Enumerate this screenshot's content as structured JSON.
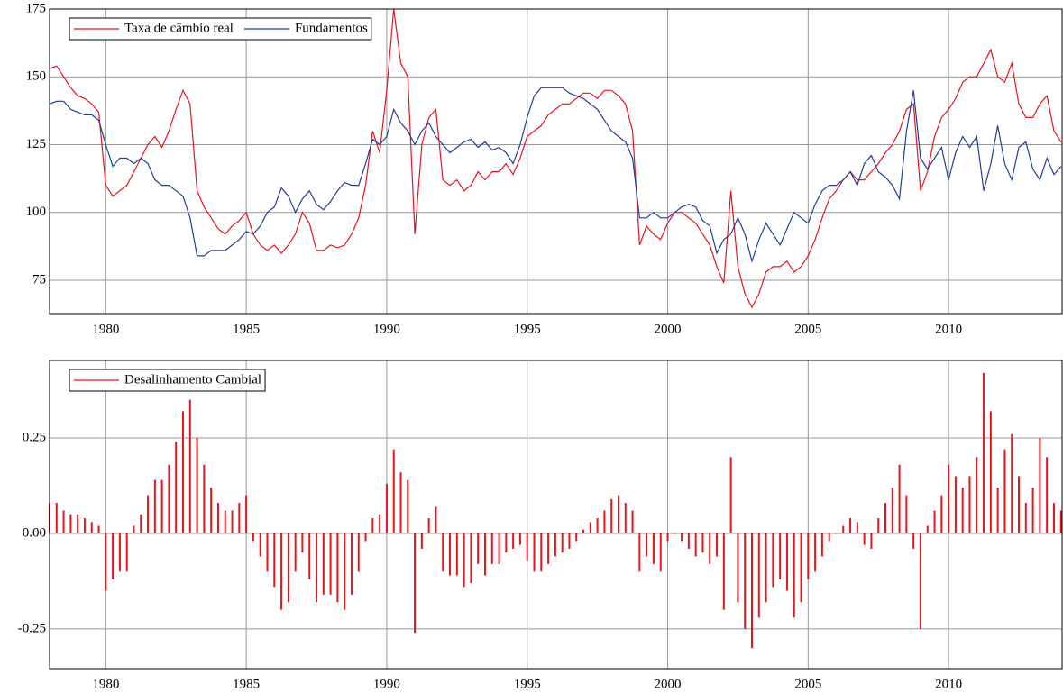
{
  "chart_data": [
    {
      "type": "line",
      "x": [
        1978,
        1978.25,
        1978.5,
        1978.75,
        1979,
        1979.25,
        1979.5,
        1979.75,
        1980,
        1980.25,
        1980.5,
        1980.75,
        1981,
        1981.25,
        1981.5,
        1981.75,
        1982,
        1982.25,
        1982.5,
        1982.75,
        1983,
        1983.25,
        1983.5,
        1983.75,
        1984,
        1984.25,
        1984.5,
        1984.75,
        1985,
        1985.25,
        1985.5,
        1985.75,
        1986,
        1986.25,
        1986.5,
        1986.75,
        1987,
        1987.25,
        1987.5,
        1987.75,
        1988,
        1988.25,
        1988.5,
        1988.75,
        1989,
        1989.25,
        1989.5,
        1989.75,
        1990,
        1990.25,
        1990.5,
        1990.75,
        1991,
        1991.25,
        1991.5,
        1991.75,
        1992,
        1992.25,
        1992.5,
        1992.75,
        1993,
        1993.25,
        1993.5,
        1993.75,
        1994,
        1994.25,
        1994.5,
        1994.75,
        1995,
        1995.25,
        1995.5,
        1995.75,
        1996,
        1996.25,
        1996.5,
        1996.75,
        1997,
        1997.25,
        1997.5,
        1997.75,
        1998,
        1998.25,
        1998.5,
        1998.75,
        1999,
        1999.25,
        1999.5,
        1999.75,
        2000,
        2000.25,
        2000.5,
        2000.75,
        2001,
        2001.25,
        2001.5,
        2001.75,
        2002,
        2002.25,
        2002.5,
        2002.75,
        2003,
        2003.25,
        2003.5,
        2003.75,
        2004,
        2004.25,
        2004.5,
        2004.75,
        2005,
        2005.25,
        2005.5,
        2005.75,
        2006,
        2006.25,
        2006.5,
        2006.75,
        2007,
        2007.25,
        2007.5,
        2007.75,
        2008,
        2008.25,
        2008.5,
        2008.75,
        2009,
        2009.25,
        2009.5,
        2009.75,
        2010,
        2010.25,
        2010.5,
        2010.75,
        2011,
        2011.25,
        2011.5,
        2011.75,
        2012,
        2012.25,
        2012.5,
        2012.75,
        2013,
        2013.25,
        2013.5,
        2013.75,
        2014
      ],
      "series": [
        {
          "name": "Taxa de câmbio real",
          "color": "#e8141c",
          "values": [
            153,
            154,
            150,
            146,
            143,
            142,
            140,
            137,
            110,
            106,
            108,
            110,
            115,
            120,
            125,
            128,
            124,
            130,
            138,
            145,
            140,
            108,
            102,
            98,
            94,
            92,
            95,
            97,
            100,
            92,
            88,
            86,
            88,
            85,
            88,
            92,
            100,
            96,
            86,
            86,
            88,
            87,
            88,
            92,
            98,
            110,
            130,
            122,
            145,
            175,
            155,
            150,
            92,
            125,
            135,
            138,
            112,
            110,
            112,
            108,
            110,
            115,
            112,
            115,
            115,
            118,
            114,
            120,
            128,
            130,
            132,
            136,
            138,
            140,
            140,
            142,
            144,
            144,
            142,
            145,
            145,
            143,
            140,
            130,
            88,
            95,
            92,
            90,
            96,
            100,
            100,
            98,
            96,
            92,
            88,
            80,
            74,
            108,
            80,
            70,
            65,
            70,
            78,
            80,
            80,
            82,
            78,
            80,
            84,
            90,
            98,
            105,
            108,
            112,
            115,
            112,
            112,
            115,
            118,
            122,
            125,
            130,
            138,
            140,
            108,
            115,
            128,
            135,
            138,
            142,
            148,
            150,
            150,
            155,
            160,
            150,
            148,
            155,
            140,
            135,
            135,
            140,
            143,
            130,
            126
          ]
        },
        {
          "name": "Fundamentos",
          "color": "#1f3f99",
          "values": [
            140,
            141,
            141,
            138,
            137,
            136,
            136,
            134,
            125,
            117,
            120,
            120,
            118,
            120,
            118,
            112,
            110,
            110,
            108,
            106,
            98,
            84,
            84,
            86,
            86,
            86,
            88,
            90,
            93,
            92,
            95,
            100,
            102,
            109,
            106,
            100,
            105,
            108,
            103,
            101,
            104,
            108,
            111,
            110,
            110,
            118,
            127,
            125,
            128,
            138,
            133,
            130,
            125,
            130,
            133,
            128,
            125,
            122,
            124,
            126,
            127,
            124,
            126,
            123,
            124,
            122,
            118,
            125,
            135,
            143,
            146,
            146,
            146,
            146,
            144,
            143,
            142,
            140,
            138,
            134,
            130,
            128,
            126,
            120,
            98,
            98,
            100,
            98,
            98,
            100,
            102,
            103,
            102,
            97,
            95,
            85,
            90,
            92,
            98,
            92,
            82,
            90,
            96,
            92,
            88,
            94,
            100,
            98,
            96,
            103,
            108,
            110,
            110,
            112,
            115,
            110,
            118,
            121,
            115,
            113,
            110,
            105,
            130,
            145,
            120,
            116,
            120,
            124,
            112,
            122,
            128,
            124,
            128,
            108,
            118,
            132,
            118,
            112,
            124,
            126,
            116,
            112,
            120,
            114,
            117
          ]
        }
      ],
      "xlim": [
        1978,
        2014.04
      ],
      "xticks": [
        1980,
        1985,
        1990,
        1995,
        2000,
        2005,
        2010
      ],
      "ylim": [
        62.7,
        175
      ],
      "yticks": [
        75,
        100,
        125,
        150,
        175
      ],
      "grid": true,
      "legend": "top-left"
    },
    {
      "type": "bar",
      "x": [
        1978,
        1978.25,
        1978.5,
        1978.75,
        1979,
        1979.25,
        1979.5,
        1979.75,
        1980,
        1980.25,
        1980.5,
        1980.75,
        1981,
        1981.25,
        1981.5,
        1981.75,
        1982,
        1982.25,
        1982.5,
        1982.75,
        1983,
        1983.25,
        1983.5,
        1983.75,
        1984,
        1984.25,
        1984.5,
        1984.75,
        1985,
        1985.25,
        1985.5,
        1985.75,
        1986,
        1986.25,
        1986.5,
        1986.75,
        1987,
        1987.25,
        1987.5,
        1987.75,
        1988,
        1988.25,
        1988.5,
        1988.75,
        1989,
        1989.25,
        1989.5,
        1989.75,
        1990,
        1990.25,
        1990.5,
        1990.75,
        1991,
        1991.25,
        1991.5,
        1991.75,
        1992,
        1992.25,
        1992.5,
        1992.75,
        1993,
        1993.25,
        1993.5,
        1993.75,
        1994,
        1994.25,
        1994.5,
        1994.75,
        1995,
        1995.25,
        1995.5,
        1995.75,
        1996,
        1996.25,
        1996.5,
        1996.75,
        1997,
        1997.25,
        1997.5,
        1997.75,
        1998,
        1998.25,
        1998.5,
        1998.75,
        1999,
        1999.25,
        1999.5,
        1999.75,
        2000,
        2000.25,
        2000.5,
        2000.75,
        2001,
        2001.25,
        2001.5,
        2001.75,
        2002,
        2002.25,
        2002.5,
        2002.75,
        2003,
        2003.25,
        2003.5,
        2003.75,
        2004,
        2004.25,
        2004.5,
        2004.75,
        2005,
        2005.25,
        2005.5,
        2005.75,
        2006,
        2006.25,
        2006.5,
        2006.75,
        2007,
        2007.25,
        2007.5,
        2007.75,
        2008,
        2008.25,
        2008.5,
        2008.75,
        2009,
        2009.25,
        2009.5,
        2009.75,
        2010,
        2010.25,
        2010.5,
        2010.75,
        2011,
        2011.25,
        2011.5,
        2011.75,
        2012,
        2012.25,
        2012.5,
        2012.75,
        2013,
        2013.25,
        2013.5,
        2013.75,
        2014
      ],
      "series": [
        {
          "name": "Desalinhamento Cambial",
          "color": "#e8141c",
          "values": [
            0.08,
            0.08,
            0.06,
            0.05,
            0.05,
            0.04,
            0.03,
            0.02,
            -0.15,
            -0.12,
            -0.1,
            -0.1,
            0.02,
            0.05,
            0.1,
            0.14,
            0.14,
            0.18,
            0.24,
            0.32,
            0.35,
            0.25,
            0.18,
            0.12,
            0.08,
            0.06,
            0.06,
            0.08,
            0.1,
            -0.02,
            -0.06,
            -0.1,
            -0.14,
            -0.2,
            -0.18,
            -0.1,
            -0.05,
            -0.12,
            -0.18,
            -0.16,
            -0.16,
            -0.18,
            -0.2,
            -0.16,
            -0.1,
            -0.02,
            0.04,
            0.05,
            0.13,
            0.22,
            0.16,
            0.14,
            -0.26,
            -0.04,
            0.04,
            0.07,
            -0.1,
            -0.11,
            -0.11,
            -0.14,
            -0.13,
            -0.08,
            -0.11,
            -0.08,
            -0.08,
            -0.05,
            -0.04,
            -0.03,
            -0.07,
            -0.1,
            -0.1,
            -0.08,
            -0.06,
            -0.05,
            -0.04,
            -0.02,
            0.01,
            0.03,
            0.04,
            0.06,
            0.09,
            0.1,
            0.08,
            0.06,
            -0.1,
            -0.06,
            -0.08,
            -0.1,
            -0.02,
            0,
            -0.02,
            -0.04,
            -0.06,
            -0.05,
            -0.08,
            -0.06,
            -0.2,
            0.2,
            -0.18,
            -0.25,
            -0.3,
            -0.22,
            -0.18,
            -0.14,
            -0.12,
            -0.15,
            -0.22,
            -0.18,
            -0.12,
            -0.1,
            -0.06,
            -0.02,
            0,
            0.02,
            0.04,
            0.03,
            -0.03,
            -0.04,
            0.04,
            0.08,
            0.12,
            0.18,
            0.1,
            -0.04,
            -0.25,
            0.02,
            0.06,
            0.1,
            0.18,
            0.15,
            0.12,
            0.15,
            0.2,
            0.42,
            0.32,
            0.12,
            0.22,
            0.26,
            0.15,
            0.08,
            0.12,
            0.25,
            0.2,
            0.08,
            0.06
          ]
        }
      ],
      "xlim": [
        1978,
        2014.04
      ],
      "xticks": [
        1980,
        1985,
        1990,
        1995,
        2000,
        2005,
        2010
      ],
      "ylim": [
        -0.354,
        0.453
      ],
      "yticks": [
        {
          "value": -0.25,
          "label": "-0.25"
        },
        {
          "value": 0,
          "label": "0.00"
        },
        {
          "value": 0.25,
          "label": "0.25"
        }
      ],
      "grid": true,
      "legend": "top-left"
    }
  ]
}
